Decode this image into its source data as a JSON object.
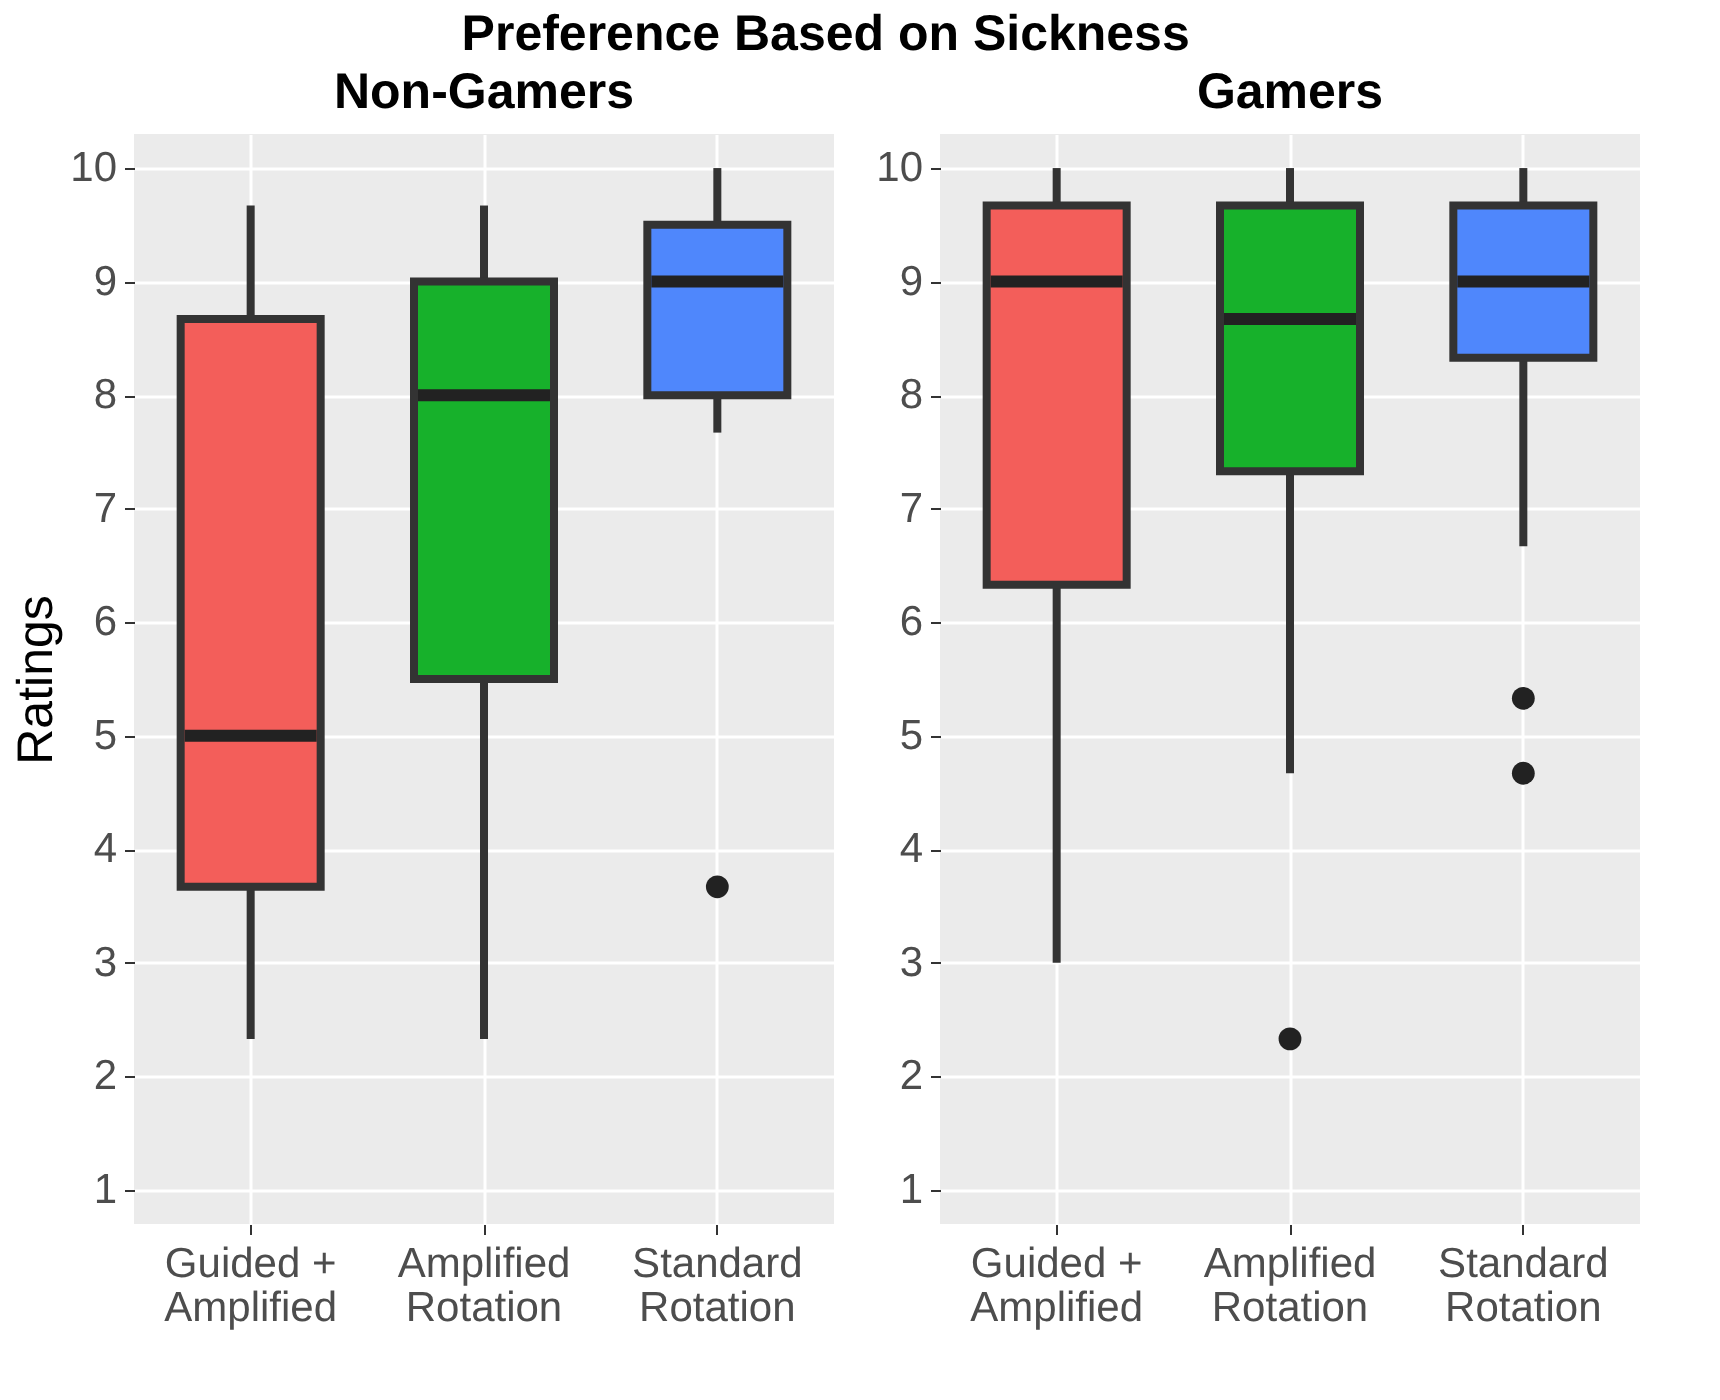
{
  "chart_data": [
    {
      "type": "box",
      "title": "Non-Gamers",
      "ylabel": "Ratings",
      "annotations": [
        "Preference Based on Sickness"
      ],
      "categories": [
        "Guided + Amplified",
        "Amplified Rotation",
        "Standard Rotation"
      ],
      "colors": [
        "#f35e5a",
        "#17b12b",
        "#4f87fc"
      ],
      "ylim": [
        0.7,
        10.3
      ],
      "yticks": [
        1,
        2,
        3,
        4,
        5,
        6,
        7,
        8,
        9,
        10
      ],
      "grid": true,
      "boxes": [
        {
          "low": 2.33,
          "q1": 3.67,
          "median": 5,
          "q3": 8.67,
          "high": 9.67
        },
        {
          "low": 2.33,
          "q1": 5.5,
          "median": 8,
          "q3": 9,
          "high": 9.67
        },
        {
          "low": 7.67,
          "q1": 8,
          "median": 9,
          "q3": 9.5,
          "high": 10,
          "outliers": [
            3.67
          ]
        }
      ]
    },
    {
      "type": "box",
      "title": "Gamers",
      "categories": [
        "Guided + Amplified",
        "Amplified Rotation",
        "Standard Rotation"
      ],
      "colors": [
        "#f35e5a",
        "#17b12b",
        "#4f87fc"
      ],
      "ylim": [
        0.7,
        10.3
      ],
      "yticks": [
        1,
        2,
        3,
        4,
        5,
        6,
        7,
        8,
        9,
        10
      ],
      "grid": true,
      "boxes": [
        {
          "low": 3,
          "q1": 6.33,
          "median": 9,
          "q3": 9.67,
          "high": 10
        },
        {
          "low": 4.67,
          "q1": 7.33,
          "median": 8.67,
          "q3": 9.67,
          "high": 10,
          "outliers": [
            2.33
          ]
        },
        {
          "low": 6.67,
          "q1": 8.33,
          "median": 9,
          "q3": 9.67,
          "high": 10,
          "outliers": [
            5.33,
            4.67
          ]
        }
      ]
    }
  ]
}
